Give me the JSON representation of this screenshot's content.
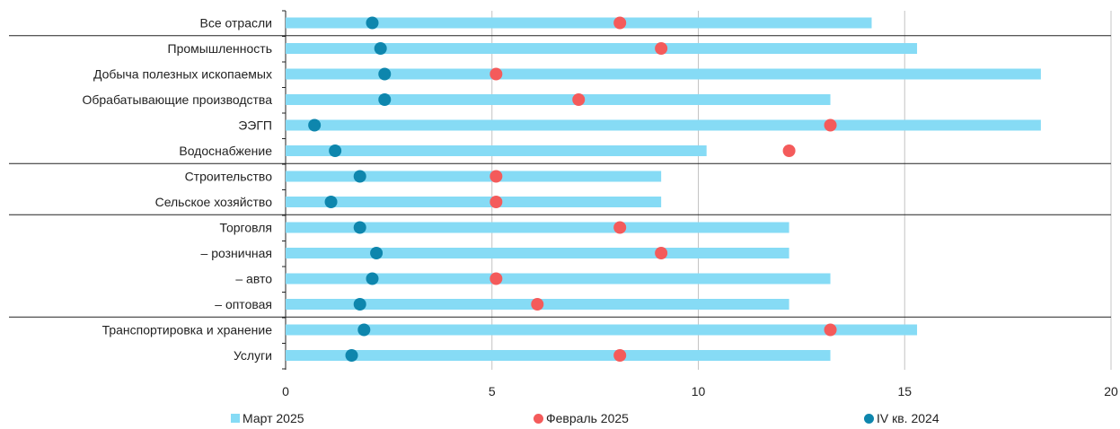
{
  "chart_data": {
    "type": "bar",
    "orientation": "horizontal",
    "categories": [
      "Все отрасли",
      "Промышленность",
      "Добыча полезных ископаемых",
      "Обрабатывающие производства",
      "ЭЭГП",
      "Водоснабжение",
      "Строительство",
      "Сельское хозяйство",
      "Торговля",
      "– розничная",
      "– авто",
      "– оптовая",
      "Транспортировка и хранение",
      "Услуги"
    ],
    "series": [
      {
        "name": "Март 2025",
        "kind": "bar",
        "color": "#86dbf5",
        "values": [
          14.2,
          15.3,
          18.3,
          13.2,
          18.3,
          10.2,
          9.1,
          9.1,
          12.2,
          12.2,
          13.2,
          12.2,
          15.3,
          13.2
        ]
      },
      {
        "name": "Февраль 2025",
        "kind": "dot",
        "color": "#f45b5b",
        "values": [
          8.1,
          9.1,
          5.1,
          7.1,
          13.2,
          12.2,
          5.1,
          5.1,
          8.1,
          9.1,
          5.1,
          6.1,
          13.2,
          8.1
        ]
      },
      {
        "name": "IV кв. 2024",
        "kind": "dot",
        "color": "#0e86ad",
        "values": [
          2.1,
          2.3,
          2.4,
          2.4,
          0.7,
          1.2,
          1.8,
          1.1,
          1.8,
          2.2,
          2.1,
          1.8,
          1.9,
          1.6
        ]
      }
    ],
    "xlim": [
      0,
      20
    ],
    "xticks": [
      "0",
      "5",
      "10",
      "15",
      "20"
    ],
    "xtick_values": [
      0,
      5,
      10,
      15,
      20
    ],
    "group_separators_after": [
      0,
      5,
      7,
      11
    ],
    "grid": true,
    "legend_position": "bottom"
  },
  "legend": {
    "items": [
      {
        "label": "Март 2025",
        "color": "#86dbf5"
      },
      {
        "label": "Февраль 2025",
        "color": "#f45b5b"
      },
      {
        "label": "IV кв. 2024",
        "color": "#0e86ad"
      }
    ]
  }
}
